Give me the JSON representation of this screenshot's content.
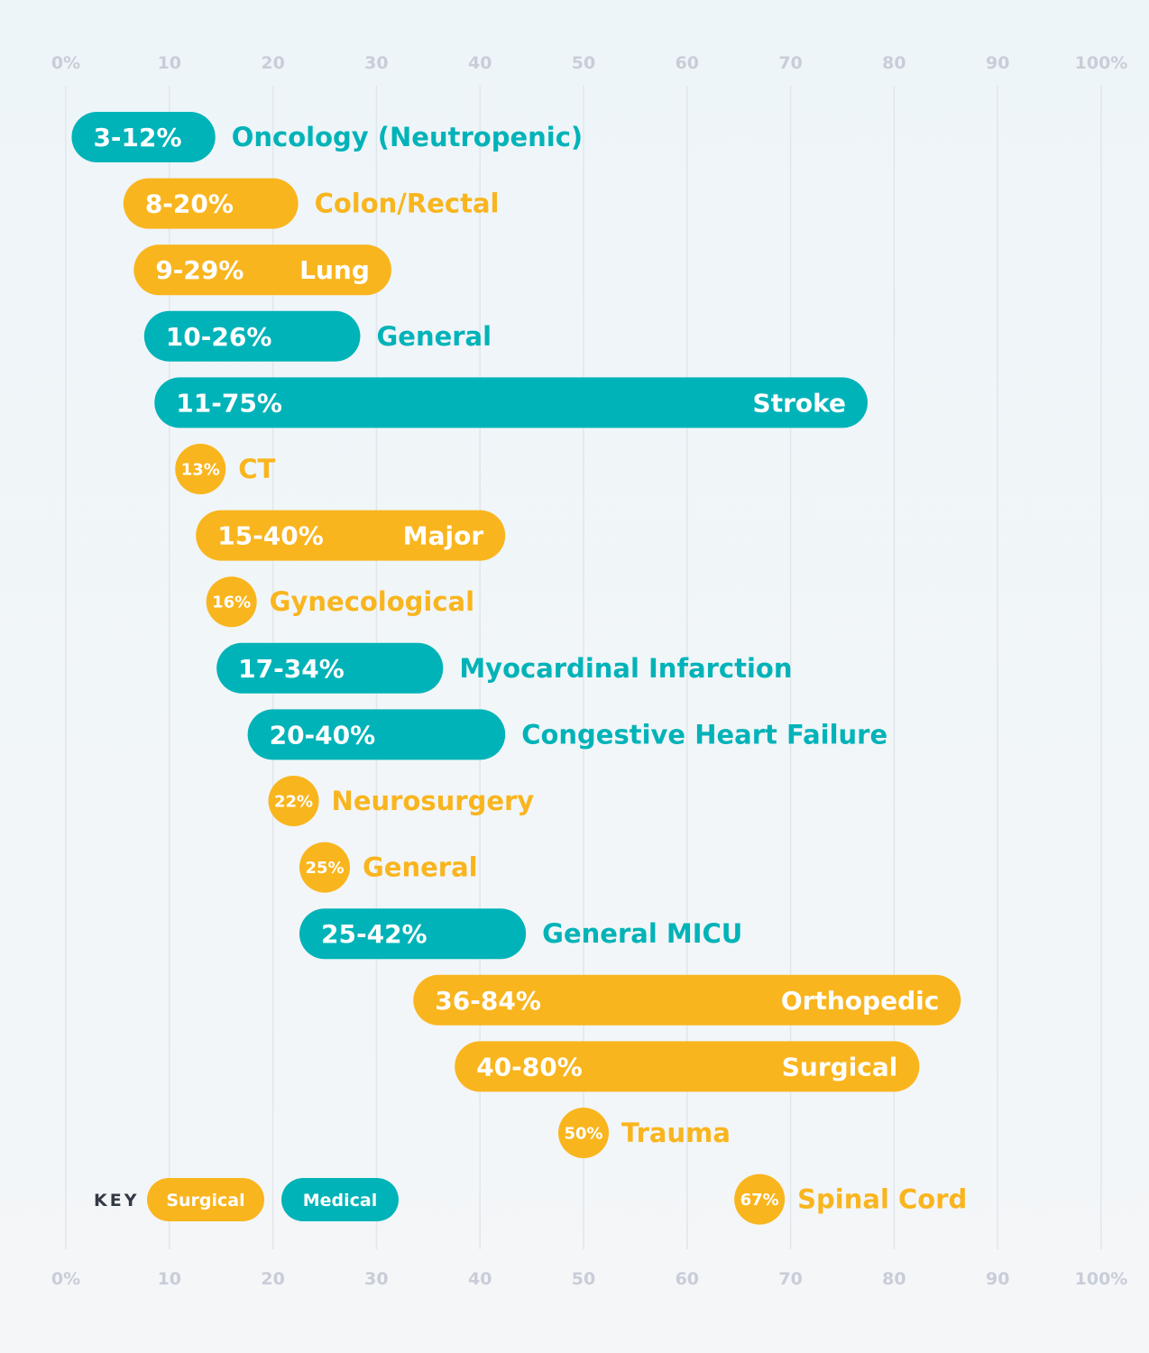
{
  "chart_data": {
    "type": "range-bar",
    "x_axis": {
      "ticks": [
        "0%",
        "10",
        "20",
        "30",
        "40",
        "50",
        "60",
        "70",
        "80",
        "90",
        "100%"
      ],
      "range": [
        0,
        100
      ]
    },
    "grid": true,
    "colors": {
      "Surgical": "#f9b51e",
      "Medical": "#00b3b8"
    },
    "legend": {
      "title": "KEY",
      "placement": "bottom-left",
      "items": [
        {
          "label": "Surgical",
          "group": "Surgical"
        },
        {
          "label": "Medical",
          "group": "Medical"
        }
      ]
    },
    "rows": [
      {
        "name": "Oncology (Neutropenic)",
        "group": "Medical",
        "low": 3,
        "high": 12,
        "label": "3-12%",
        "name_inside": false
      },
      {
        "name": "Colon/Rectal",
        "group": "Surgical",
        "low": 8,
        "high": 20,
        "label": "8-20%",
        "name_inside": false
      },
      {
        "name": "Lung",
        "group": "Surgical",
        "low": 9,
        "high": 29,
        "label": "9-29%",
        "name_inside": true
      },
      {
        "name": "General",
        "group": "Medical",
        "low": 10,
        "high": 26,
        "label": "10-26%",
        "name_inside": false
      },
      {
        "name": "Stroke",
        "group": "Medical",
        "low": 11,
        "high": 75,
        "label": "11-75%",
        "name_inside": true
      },
      {
        "name": "CT",
        "group": "Surgical",
        "low": 13,
        "high": 13,
        "label": "13%",
        "name_inside": false
      },
      {
        "name": "Major",
        "group": "Surgical",
        "low": 15,
        "high": 40,
        "label": "15-40%",
        "name_inside": true
      },
      {
        "name": "Gynecological",
        "group": "Surgical",
        "low": 16,
        "high": 16,
        "label": "16%",
        "name_inside": false
      },
      {
        "name": "Myocardinal Infarction",
        "group": "Medical",
        "low": 17,
        "high": 34,
        "label": "17-34%",
        "name_inside": false
      },
      {
        "name": "Congestive Heart Failure",
        "group": "Medical",
        "low": 20,
        "high": 40,
        "label": "20-40%",
        "name_inside": false
      },
      {
        "name": "Neurosurgery",
        "group": "Surgical",
        "low": 22,
        "high": 22,
        "label": "22%",
        "name_inside": false
      },
      {
        "name": "General",
        "group": "Surgical",
        "low": 25,
        "high": 25,
        "label": "25%",
        "name_inside": false
      },
      {
        "name": "General MICU",
        "group": "Medical",
        "low": 25,
        "high": 42,
        "label": "25-42%",
        "name_inside": false
      },
      {
        "name": "Orthopedic",
        "group": "Surgical",
        "low": 36,
        "high": 84,
        "label": "36-84%",
        "name_inside": true
      },
      {
        "name": "Surgical",
        "group": "Surgical",
        "low": 40,
        "high": 80,
        "label": "40-80%",
        "name_inside": true
      },
      {
        "name": "Trauma",
        "group": "Surgical",
        "low": 50,
        "high": 50,
        "label": "50%",
        "name_inside": false
      },
      {
        "name": "Spinal Cord",
        "group": "Surgical",
        "low": 67,
        "high": 67,
        "label": "67%",
        "name_inside": false
      }
    ]
  }
}
